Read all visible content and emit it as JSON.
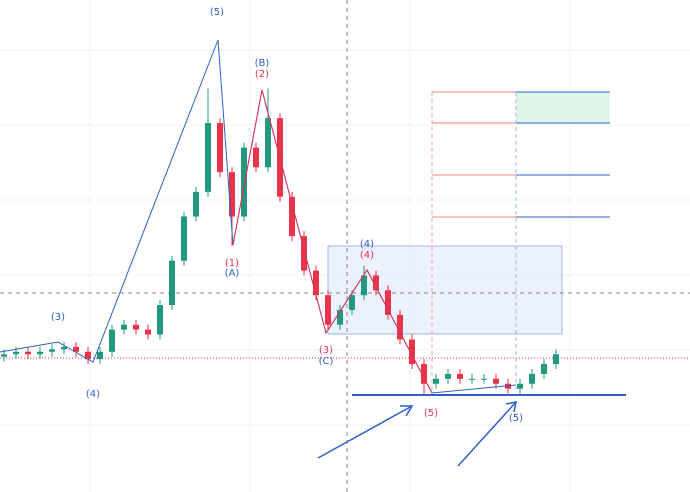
{
  "chart_data": {
    "type": "candlestick",
    "ylim": [
      0,
      100
    ],
    "up_color": "#22997f",
    "down_color": "#e8334a",
    "open": [
      27.5,
      28,
      28.5,
      28,
      28.5,
      29,
      29.5,
      28.5,
      27,
      28.5,
      33,
      34,
      33,
      32,
      38,
      47,
      56,
      61,
      75,
      65,
      56,
      70,
      66,
      76,
      60,
      52,
      45,
      40,
      34,
      37,
      40,
      44,
      41,
      36,
      31,
      26,
      22,
      23,
      24,
      23,
      23,
      23,
      22,
      21,
      22,
      24,
      26
    ],
    "high": [
      29,
      29.5,
      29.5,
      29.5,
      30,
      30.5,
      30.5,
      29.5,
      29.5,
      34,
      35,
      35,
      34,
      39,
      48,
      57,
      62,
      82,
      76,
      66,
      71,
      71,
      82,
      77,
      61,
      53,
      46,
      41,
      38,
      41,
      46,
      45,
      42,
      37,
      32,
      27,
      24,
      25,
      25,
      24,
      24,
      24,
      23,
      23,
      25,
      27,
      29
    ],
    "low": [
      26.5,
      27,
      27,
      27,
      27.5,
      28,
      27.5,
      26,
      26,
      27.5,
      32,
      32,
      31,
      31,
      37,
      46,
      55,
      60,
      64,
      50,
      55,
      65,
      65,
      59,
      51,
      44,
      39,
      33,
      33,
      36,
      39,
      40,
      35,
      30,
      25,
      20,
      21,
      22,
      22,
      22,
      22,
      21,
      20,
      20,
      21,
      23,
      25
    ],
    "close": [
      28,
      28.5,
      28,
      28.5,
      29,
      29.5,
      28.5,
      27,
      28.5,
      33,
      34,
      33,
      32,
      38,
      47,
      56,
      61,
      75,
      65,
      56,
      70,
      66,
      76,
      60,
      52,
      45,
      40,
      34,
      37,
      40,
      44,
      41,
      36,
      31,
      26,
      22,
      23,
      24,
      23,
      23,
      23,
      22,
      21,
      22,
      24,
      26,
      28
    ],
    "annotations": [
      {
        "text": "(5)",
        "color": "#2e5fc9"
      },
      {
        "text": "(B)",
        "color": "#2e5fc9"
      },
      {
        "text": "(2)",
        "color": "#e8334a"
      },
      {
        "text": "(1)",
        "color": "#e8334a"
      },
      {
        "text": "(A)",
        "color": "#2e5fc9"
      },
      {
        "text": "(3)",
        "color": "#2e5fc9"
      },
      {
        "text": "(4)",
        "color": "#2e5fc9"
      },
      {
        "text": "(4)",
        "color": "#2e5fc9"
      },
      {
        "text": "(4)",
        "color": "#e8334a"
      },
      {
        "text": "(3)",
        "color": "#e8334a"
      },
      {
        "text": "(C)",
        "color": "#2e5fc9"
      },
      {
        "text": "(5)",
        "color": "#e8334a"
      },
      {
        "text": "(5)",
        "color": "#2e5fc9"
      }
    ]
  }
}
